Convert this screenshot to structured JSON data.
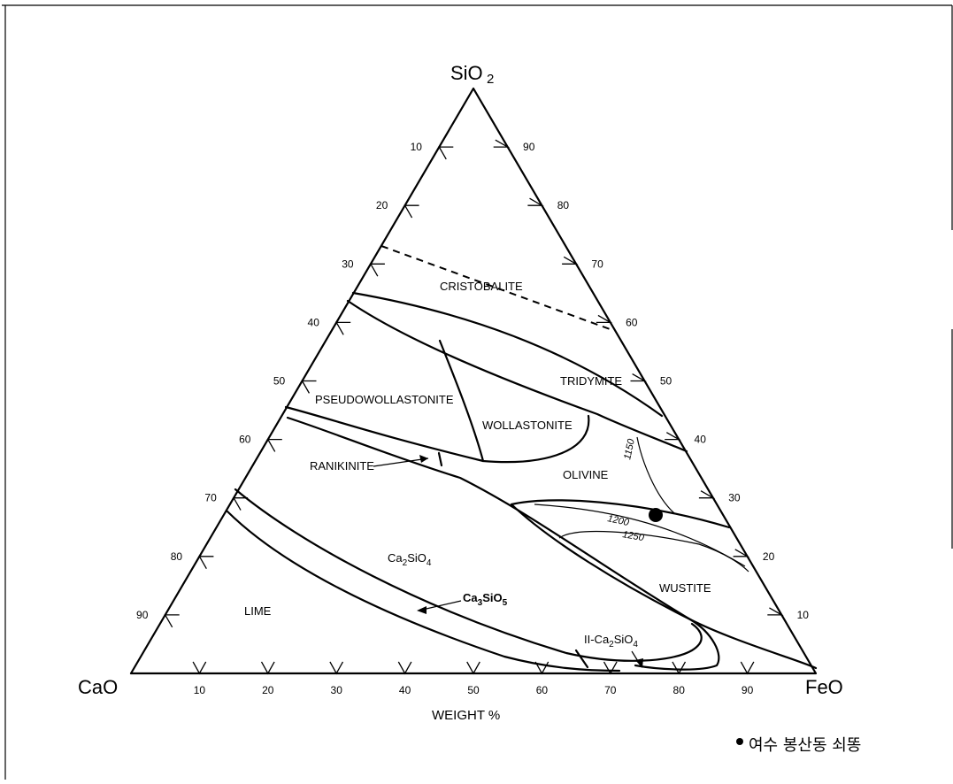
{
  "vertices": {
    "top": "SiO",
    "top_sub": "2",
    "left": "CaO",
    "right": "FeO"
  },
  "axis_label": "WEIGHT %",
  "ticks": {
    "left": [
      "10",
      "20",
      "30",
      "40",
      "50",
      "60",
      "70",
      "80",
      "90"
    ],
    "right": [
      "90",
      "80",
      "70",
      "60",
      "50",
      "40",
      "30",
      "20",
      "10"
    ],
    "bottom": [
      "10",
      "20",
      "30",
      "40",
      "50",
      "60",
      "70",
      "80",
      "90"
    ]
  },
  "regions": {
    "cristobalite": "CRISTOBALITE",
    "tridymite": "TRIDYMITE",
    "pseudowollastonite": "PSEUDOWOLLASTONITE",
    "wollastonite": "WOLLASTONITE",
    "ranikinite": "RANIKINITE",
    "olivine": "OLIVINE",
    "ca2sio4": {
      "base": "Ca",
      "sub1": "2",
      "mid": "SiO",
      "sub2": "4"
    },
    "ca3sio5": {
      "base": "Ca",
      "sub1": "3",
      "mid": "SiO",
      "sub2": "5"
    },
    "lime": "LIME",
    "wustite": "WUSTITE",
    "ii_ca2sio4": {
      "base": "II-Ca",
      "sub1": "2",
      "mid": "SiO",
      "sub2": "4"
    }
  },
  "isotherms": [
    "1150",
    "1200",
    "1250"
  ],
  "legend": {
    "label": "여수 봉산동 쇠똥"
  }
}
